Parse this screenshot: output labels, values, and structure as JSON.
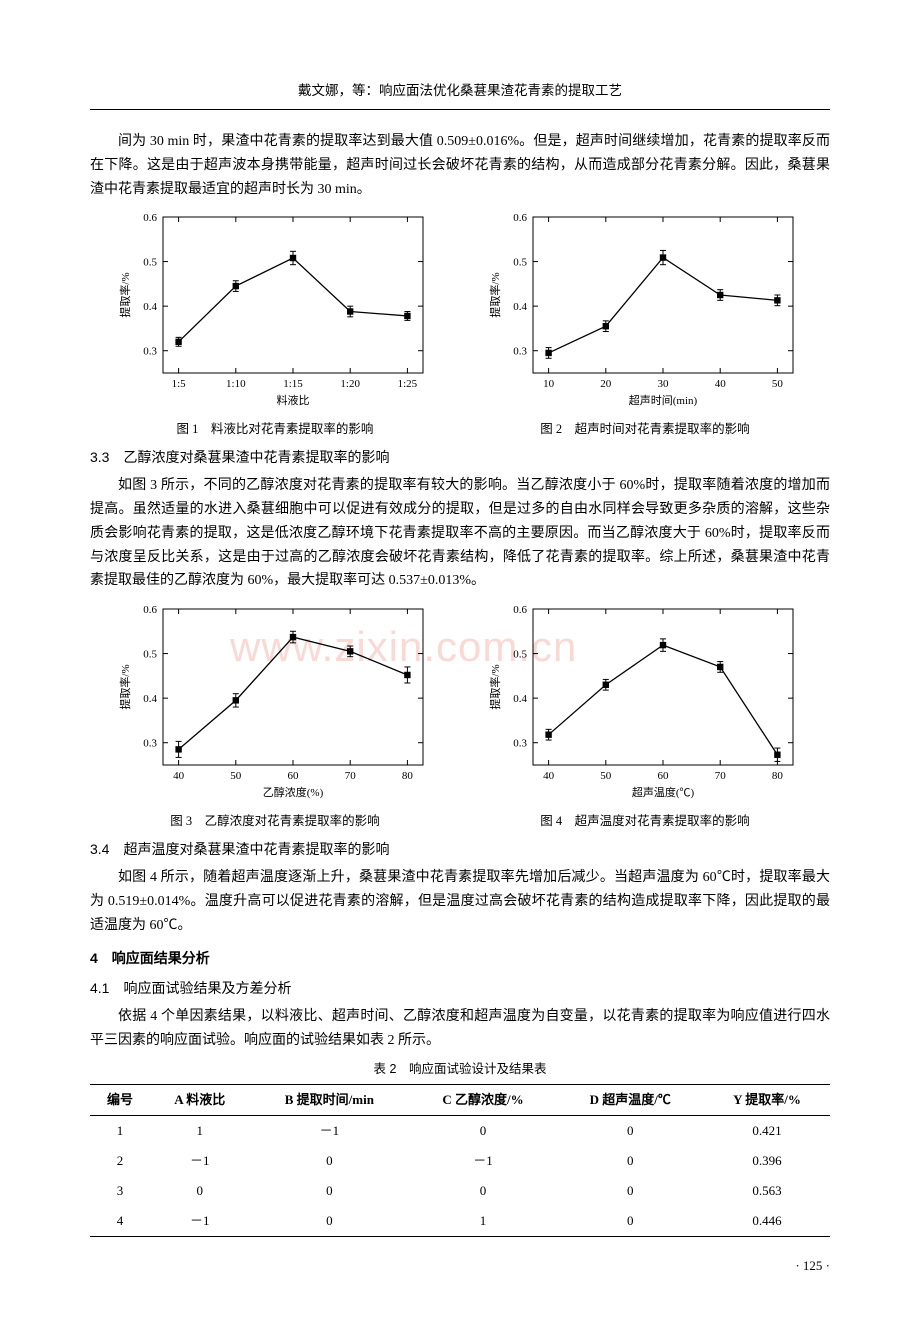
{
  "header": "戴文娜，等：响应面法优化桑葚果渣花青素的提取工艺",
  "para1": "间为 30 min 时，果渣中花青素的提取率达到最大值 0.509±0.016%。但是，超声时间继续增加，花青素的提取率反而在下降。这是由于超声波本身携带能量，超声时间过长会破坏花青素的结构，从而造成部分花青素分解。因此，桑葚果渣中花青素提取最适宜的超声时长为 30 min。",
  "fig1": {
    "type": "line",
    "caption": "图 1　料液比对花青素提取率的影响",
    "xlabel": "料液比",
    "ylabel": "提取率/%",
    "xticks": [
      "1:5",
      "1:10",
      "1:15",
      "1:20",
      "1:25"
    ],
    "yticks": [
      "0.3",
      "0.4",
      "0.5",
      "0.6"
    ],
    "ylim": [
      0.25,
      0.6
    ],
    "points": [
      0.32,
      0.445,
      0.508,
      0.388,
      0.378
    ],
    "errors": [
      0.01,
      0.012,
      0.015,
      0.012,
      0.01
    ],
    "color": "#000000",
    "bg": "#ffffff"
  },
  "fig2": {
    "type": "line",
    "caption": "图 2　超声时间对花青素提取率的影响",
    "xlabel": "超声时间(min)",
    "ylabel": "提取率/%",
    "xticks": [
      "10",
      "20",
      "30",
      "40",
      "50"
    ],
    "yticks": [
      "0.3",
      "0.4",
      "0.5",
      "0.6"
    ],
    "ylim": [
      0.25,
      0.6
    ],
    "points": [
      0.295,
      0.355,
      0.509,
      0.425,
      0.413
    ],
    "errors": [
      0.012,
      0.012,
      0.016,
      0.012,
      0.012
    ],
    "color": "#000000",
    "bg": "#ffffff"
  },
  "heading33": "3.3　乙醇浓度对桑葚果渣中花青素提取率的影响",
  "para33": "如图 3 所示，不同的乙醇浓度对花青素的提取率有较大的影响。当乙醇浓度小于 60%时，提取率随着浓度的增加而提高。虽然适量的水进入桑葚细胞中可以促进有效成分的提取，但是过多的自由水同样会导致更多杂质的溶解，这些杂质会影响花青素的提取，这是低浓度乙醇环境下花青素提取率不高的主要原因。而当乙醇浓度大于 60%时，提取率反而与浓度呈反比关系，这是由于过高的乙醇浓度会破坏花青素结构，降低了花青素的提取率。综上所述，桑葚果渣中花青素提取最佳的乙醇浓度为 60%，最大提取率可达 0.537±0.013%。",
  "watermark": "www.zixin.com.cn",
  "fig3": {
    "type": "line",
    "caption": "图 3　乙醇浓度对花青素提取率的影响",
    "xlabel": "乙醇浓度(%)",
    "ylabel": "提取率/%",
    "xticks": [
      "40",
      "50",
      "60",
      "70",
      "80"
    ],
    "yticks": [
      "0.3",
      "0.4",
      "0.5",
      "0.6"
    ],
    "ylim": [
      0.25,
      0.6
    ],
    "points": [
      0.285,
      0.395,
      0.537,
      0.505,
      0.452
    ],
    "errors": [
      0.018,
      0.015,
      0.013,
      0.012,
      0.018
    ],
    "color": "#000000",
    "bg": "#ffffff"
  },
  "fig4": {
    "type": "line",
    "caption": "图 4　超声温度对花青素提取率的影响",
    "xlabel": "超声温度(℃)",
    "ylabel": "提取率/%",
    "xticks": [
      "40",
      "50",
      "60",
      "70",
      "80"
    ],
    "yticks": [
      "0.3",
      "0.4",
      "0.5",
      "0.6"
    ],
    "ylim": [
      0.25,
      0.6
    ],
    "points": [
      0.318,
      0.43,
      0.519,
      0.47,
      0.273
    ],
    "errors": [
      0.012,
      0.012,
      0.014,
      0.012,
      0.015
    ],
    "color": "#000000",
    "bg": "#ffffff"
  },
  "heading34": "3.4　超声温度对桑葚果渣中花青素提取率的影响",
  "para34": "如图 4 所示，随着超声温度逐渐上升，桑葚果渣中花青素提取率先增加后减少。当超声温度为 60℃时，提取率最大为 0.519±0.014%。温度升高可以促进花青素的溶解，但是温度过高会破坏花青素的结构造成提取率下降，因此提取的最适温度为 60℃。",
  "heading4": "4　响应面结果分析",
  "heading41": "4.1　响应面试验结果及方差分析",
  "para41": "依据 4 个单因素结果，以料液比、超声时间、乙醇浓度和超声温度为自变量，以花青素的提取率为响应值进行四水平三因素的响应面试验。响应面的试验结果如表 2 所示。",
  "table2": {
    "title": "表 2　响应面试验设计及结果表",
    "columns": [
      "编号",
      "A 料液比",
      "B 提取时间/min",
      "C 乙醇浓度/%",
      "D 超声温度/℃",
      "Y 提取率/%"
    ],
    "rows": [
      [
        "1",
        "1",
        "－1",
        "0",
        "0",
        "0.421"
      ],
      [
        "2",
        "－1",
        "0",
        "－1",
        "0",
        "0.396"
      ],
      [
        "3",
        "0",
        "0",
        "0",
        "0",
        "0.563"
      ],
      [
        "4",
        "－1",
        "0",
        "1",
        "0",
        "0.446"
      ]
    ]
  },
  "pageNum": "· 125 ·"
}
